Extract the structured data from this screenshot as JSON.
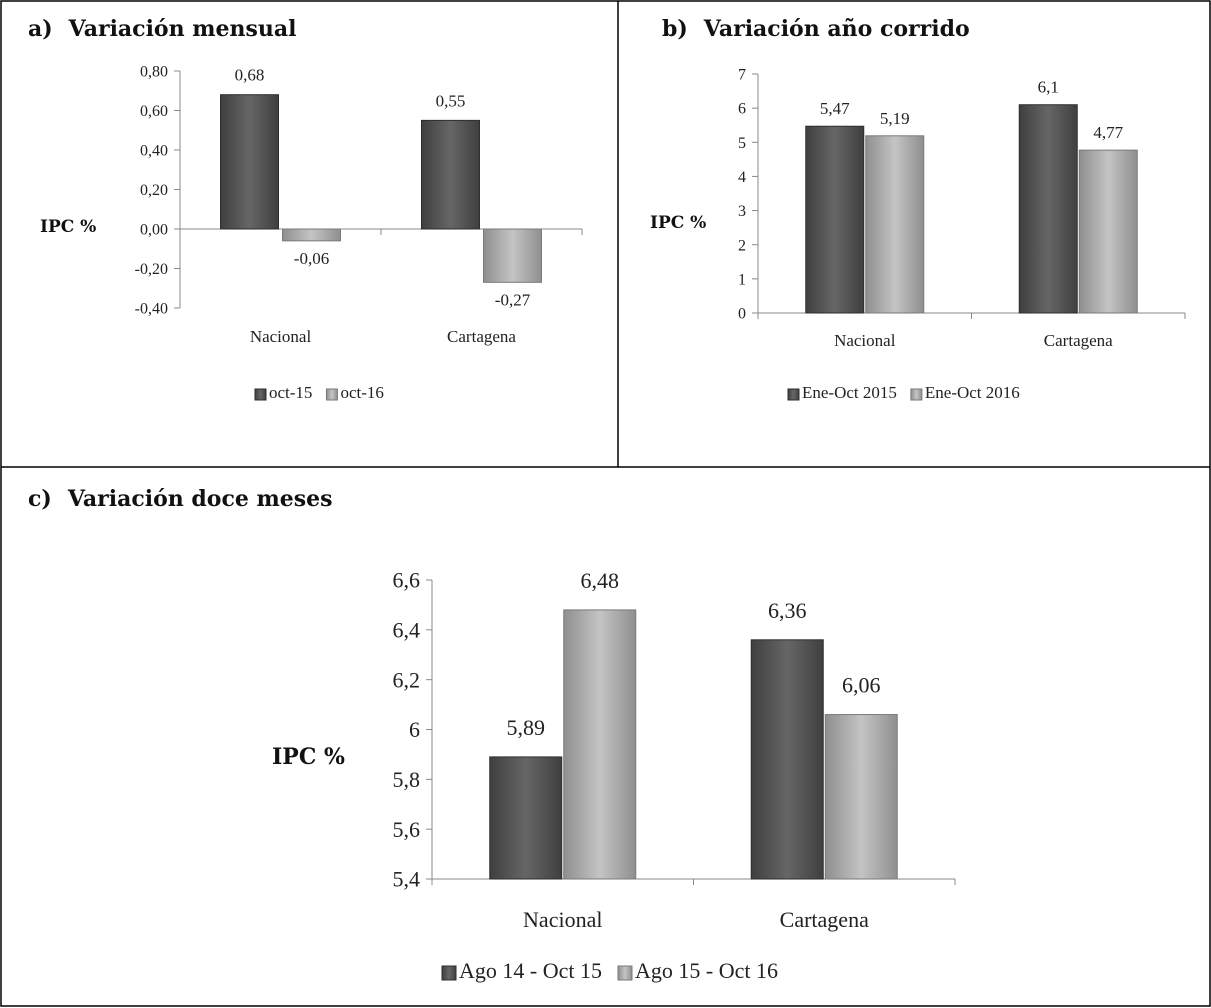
{
  "chart_data": [
    {
      "type": "bar",
      "panel_label": "a)",
      "title": "Variación mensual",
      "ylabel": "IPC %",
      "xlabel": "",
      "categories": [
        "Nacional",
        "Cartagena"
      ],
      "series": [
        {
          "name": "oct-15",
          "values": [
            0.68,
            0.55
          ],
          "value_labels": [
            "0,68",
            "0,55"
          ],
          "color": "#595959"
        },
        {
          "name": "oct-16",
          "values": [
            -0.06,
            -0.27
          ],
          "value_labels": [
            "-0,06",
            "-0,27"
          ],
          "color": "#a6a6a6"
        }
      ],
      "ylim": [
        -0.4,
        0.8
      ],
      "yticks": [
        -0.4,
        -0.2,
        0,
        0.2,
        0.4,
        0.6,
        0.8
      ],
      "ytick_labels": [
        "-0,40",
        "-0,20",
        "0,00",
        "0,20",
        "0,40",
        "0,60",
        "0,80"
      ],
      "legend": "bottom",
      "grid": false
    },
    {
      "type": "bar",
      "panel_label": "b)",
      "title": "Variación año corrido",
      "ylabel": "IPC %",
      "xlabel": "",
      "categories": [
        "Nacional",
        "Cartagena"
      ],
      "series": [
        {
          "name": "Ene-Oct 2015",
          "values": [
            5.47,
            6.1
          ],
          "value_labels": [
            "5,47",
            "6,1"
          ],
          "color": "#595959"
        },
        {
          "name": "Ene-Oct 2016",
          "values": [
            5.19,
            4.77
          ],
          "value_labels": [
            "5,19",
            "4,77"
          ],
          "color": "#a6a6a6"
        }
      ],
      "ylim": [
        0,
        7
      ],
      "yticks": [
        0,
        1,
        2,
        3,
        4,
        5,
        6,
        7
      ],
      "ytick_labels": [
        "0",
        "1",
        "2",
        "3",
        "4",
        "5",
        "6",
        "7"
      ],
      "legend": "bottom",
      "grid": false
    },
    {
      "type": "bar",
      "panel_label": "c)",
      "title": "Variación doce meses",
      "ylabel": "IPC %",
      "xlabel": "",
      "categories": [
        "Nacional",
        "Cartagena"
      ],
      "series": [
        {
          "name": "Ago 14 - Oct 15",
          "values": [
            5.89,
            6.36
          ],
          "value_labels": [
            "5,89",
            "6,36"
          ],
          "color": "#595959"
        },
        {
          "name": "Ago 15 - Oct 16",
          "values": [
            6.48,
            6.06
          ],
          "value_labels": [
            "6,48",
            "6,06"
          ],
          "color": "#a6a6a6"
        }
      ],
      "ylim": [
        5.4,
        6.6
      ],
      "yticks": [
        5.4,
        5.6,
        5.8,
        6.0,
        6.2,
        6.4,
        6.6
      ],
      "ytick_labels": [
        "5,4",
        "5,6",
        "5,8",
        "6",
        "6,2",
        "6,4",
        "6,6"
      ],
      "legend": "bottom",
      "grid": false
    }
  ]
}
